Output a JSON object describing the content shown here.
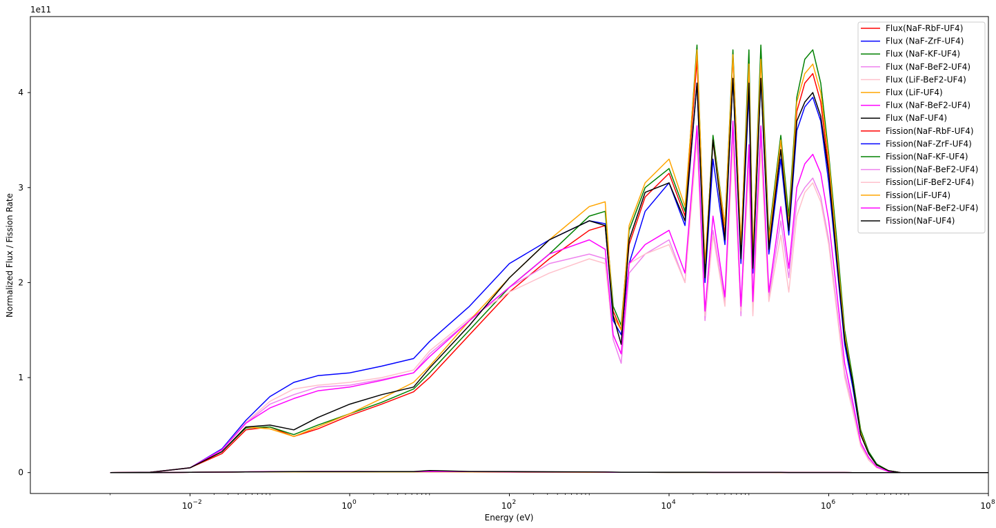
{
  "chart_data": {
    "type": "line",
    "xlabel": "Energy (eV)",
    "ylabel": "Normalized Flux / Fission Rate",
    "y_offset_label": "1e11",
    "x_scale": "log",
    "xlim_exp": [
      -4.0,
      8.0
    ],
    "ylim": [
      -0.22,
      4.8
    ],
    "x_ticks": [
      {
        "exp": -2,
        "label": "10",
        "sup": "−2"
      },
      {
        "exp": 0,
        "label": "10",
        "sup": "0"
      },
      {
        "exp": 2,
        "label": "10",
        "sup": "2"
      },
      {
        "exp": 4,
        "label": "10",
        "sup": "4"
      },
      {
        "exp": 6,
        "label": "10",
        "sup": "6"
      },
      {
        "exp": 8,
        "label": "10",
        "sup": "8"
      }
    ],
    "y_ticks": [
      {
        "value": 0,
        "label": "0"
      },
      {
        "value": 1,
        "label": "1"
      },
      {
        "value": 2,
        "label": "2"
      },
      {
        "value": 3,
        "label": "3"
      },
      {
        "value": 4,
        "label": "4"
      }
    ],
    "grid": false,
    "legend_position": "top-right",
    "x_points_exp": [
      -3,
      -2.5,
      -2,
      -1.6,
      -1.3,
      -1,
      -0.7,
      -0.4,
      0,
      0.4,
      0.8,
      1,
      1.5,
      2,
      2.5,
      3,
      3.2,
      3.3,
      3.4,
      3.5,
      3.7,
      4,
      4.2,
      4.35,
      4.45,
      4.55,
      4.7,
      4.8,
      4.9,
      5,
      5.05,
      5.15,
      5.25,
      5.4,
      5.5,
      5.6,
      5.7,
      5.8,
      5.9,
      6,
      6.1,
      6.2,
      6.3,
      6.4,
      6.5,
      6.6,
      6.75,
      6.9,
      7.2,
      7.6,
      8
    ],
    "series": [
      {
        "name": "Flux(NaF-RbF-UF4)",
        "color": "#ff0000",
        "values": [
          0,
          0.003,
          0.05,
          0.2,
          0.45,
          0.48,
          0.38,
          0.46,
          0.6,
          0.72,
          0.85,
          1.0,
          1.45,
          1.9,
          2.25,
          2.55,
          2.6,
          1.7,
          1.5,
          2.4,
          2.9,
          3.15,
          2.7,
          4.35,
          2.1,
          3.5,
          2.5,
          4.4,
          2.3,
          4.25,
          2.2,
          4.4,
          2.4,
          3.5,
          2.6,
          3.8,
          4.1,
          4.2,
          3.9,
          3.2,
          2.3,
          1.4,
          0.95,
          0.4,
          0.2,
          0.08,
          0.02,
          0,
          0,
          0,
          0
        ]
      },
      {
        "name": "Flux (NaF-ZrF-UF4)",
        "color": "#0000ff",
        "values": [
          0,
          0.003,
          0.05,
          0.25,
          0.55,
          0.8,
          0.95,
          1.02,
          1.05,
          1.12,
          1.2,
          1.38,
          1.75,
          2.2,
          2.45,
          2.65,
          2.62,
          1.6,
          1.45,
          2.2,
          2.75,
          3.05,
          2.6,
          4.1,
          2.0,
          3.3,
          2.4,
          4.15,
          2.2,
          4.0,
          2.1,
          4.15,
          2.3,
          3.3,
          2.5,
          3.6,
          3.85,
          3.95,
          3.7,
          3.05,
          2.2,
          1.35,
          0.9,
          0.4,
          0.2,
          0.08,
          0.02,
          0,
          0,
          0,
          0
        ]
      },
      {
        "name": "Flux (NaF-KF-UF4)",
        "color": "#008000",
        "values": [
          0,
          0.003,
          0.05,
          0.22,
          0.47,
          0.48,
          0.4,
          0.5,
          0.62,
          0.74,
          0.88,
          1.05,
          1.5,
          1.95,
          2.3,
          2.7,
          2.75,
          1.75,
          1.55,
          2.55,
          3.0,
          3.2,
          2.75,
          4.5,
          2.15,
          3.55,
          2.6,
          4.45,
          2.35,
          4.45,
          2.25,
          4.5,
          2.5,
          3.55,
          2.7,
          3.95,
          4.35,
          4.45,
          4.1,
          3.35,
          2.45,
          1.5,
          1.0,
          0.45,
          0.22,
          0.09,
          0.02,
          0,
          0,
          0,
          0
        ]
      },
      {
        "name": "Flux (NaF-BeF2-UF4)",
        "color": "#ee82ee",
        "values": [
          0,
          0.003,
          0.05,
          0.24,
          0.52,
          0.72,
          0.82,
          0.9,
          0.92,
          0.98,
          1.05,
          1.25,
          1.6,
          1.95,
          2.2,
          2.3,
          2.25,
          1.4,
          1.15,
          2.1,
          2.3,
          2.45,
          2.0,
          3.6,
          1.6,
          2.55,
          1.8,
          3.6,
          1.65,
          3.3,
          1.7,
          3.55,
          1.85,
          2.65,
          2.05,
          2.85,
          3.0,
          3.1,
          2.9,
          2.45,
          1.75,
          1.05,
          0.7,
          0.3,
          0.15,
          0.06,
          0.01,
          0,
          0,
          0,
          0
        ]
      },
      {
        "name": "Flux (LiF-BeF2-UF4)",
        "color": "#ffc0cb",
        "values": [
          0,
          0.003,
          0.05,
          0.24,
          0.53,
          0.75,
          0.88,
          0.92,
          0.95,
          1.0,
          1.08,
          1.28,
          1.62,
          1.9,
          2.1,
          2.25,
          2.2,
          1.45,
          1.25,
          2.2,
          2.3,
          2.4,
          2.0,
          3.5,
          1.65,
          2.5,
          1.75,
          3.45,
          1.7,
          3.2,
          1.65,
          3.4,
          1.8,
          2.5,
          1.9,
          2.7,
          2.95,
          3.05,
          2.85,
          2.4,
          1.7,
          1.0,
          0.65,
          0.28,
          0.13,
          0.05,
          0.01,
          0,
          0,
          0,
          0
        ]
      },
      {
        "name": "Flux (LiF-UF4)",
        "color": "#ffa500",
        "values": [
          0,
          0.003,
          0.05,
          0.22,
          0.48,
          0.46,
          0.38,
          0.48,
          0.62,
          0.78,
          0.95,
          1.12,
          1.6,
          2.05,
          2.45,
          2.8,
          2.85,
          1.65,
          1.5,
          2.6,
          3.05,
          3.3,
          2.8,
          4.45,
          2.2,
          3.5,
          2.6,
          4.4,
          2.4,
          4.3,
          2.3,
          4.35,
          2.45,
          3.5,
          2.6,
          3.9,
          4.2,
          4.3,
          4.0,
          3.3,
          2.35,
          1.45,
          0.95,
          0.42,
          0.2,
          0.08,
          0.02,
          0,
          0,
          0,
          0
        ]
      },
      {
        "name": "Flux (NaF-BeF2-UF4)",
        "color": "#ff00ff",
        "values": [
          0,
          0.003,
          0.05,
          0.24,
          0.52,
          0.68,
          0.78,
          0.86,
          0.9,
          0.97,
          1.05,
          1.22,
          1.6,
          1.95,
          2.3,
          2.45,
          2.35,
          1.45,
          1.25,
          2.2,
          2.4,
          2.55,
          2.1,
          3.65,
          1.7,
          2.7,
          1.85,
          3.7,
          1.75,
          3.45,
          1.8,
          3.65,
          1.9,
          2.8,
          2.15,
          3.0,
          3.25,
          3.35,
          3.15,
          2.65,
          1.9,
          1.15,
          0.75,
          0.32,
          0.16,
          0.06,
          0.01,
          0,
          0,
          0,
          0
        ]
      },
      {
        "name": "Flux (NaF-UF4)",
        "color": "#000000",
        "values": [
          0,
          0.003,
          0.05,
          0.22,
          0.48,
          0.5,
          0.45,
          0.58,
          0.72,
          0.82,
          0.9,
          1.1,
          1.55,
          2.05,
          2.45,
          2.65,
          2.6,
          1.65,
          1.35,
          2.45,
          2.95,
          3.05,
          2.65,
          4.1,
          2.05,
          3.5,
          2.45,
          4.15,
          2.25,
          4.1,
          2.15,
          4.15,
          2.35,
          3.4,
          2.55,
          3.7,
          3.9,
          4.0,
          3.75,
          3.15,
          2.25,
          1.4,
          0.95,
          0.4,
          0.2,
          0.08,
          0.02,
          0,
          0,
          0,
          0
        ]
      },
      {
        "name": "Fission(NaF-RbF-UF4)",
        "color": "#ff0000",
        "values": [
          0,
          0,
          0.003,
          0.005,
          0.007,
          0.008,
          0.008,
          0.009,
          0.009,
          0.008,
          0.008,
          0.008,
          0.007,
          0.006,
          0.005,
          0.004,
          0.004,
          0.003,
          0.003,
          0.003,
          0.003,
          0.002,
          0.002,
          0.002,
          0.002,
          0.002,
          0.002,
          0.002,
          0.002,
          0.002,
          0.002,
          0.002,
          0.002,
          0.001,
          0.001,
          0.001,
          0.001,
          0.001,
          0.001,
          0.001,
          0.001,
          0.001,
          0,
          0,
          0,
          0,
          0,
          0,
          0,
          0,
          0
        ]
      },
      {
        "name": "Fission(NaF-ZrF-UF4)",
        "color": "#0000ff",
        "values": [
          0,
          0,
          0.003,
          0.005,
          0.007,
          0.008,
          0.009,
          0.01,
          0.01,
          0.009,
          0.009,
          0.009,
          0.008,
          0.007,
          0.006,
          0.005,
          0.004,
          0.003,
          0.003,
          0.003,
          0.003,
          0.002,
          0.002,
          0.002,
          0.002,
          0.002,
          0.002,
          0.002,
          0.002,
          0.002,
          0.002,
          0.002,
          0.002,
          0.001,
          0.001,
          0.001,
          0.001,
          0.001,
          0.001,
          0.001,
          0.001,
          0.001,
          0,
          0,
          0,
          0,
          0,
          0,
          0,
          0,
          0
        ]
      },
      {
        "name": "Fission(NaF-KF-UF4)",
        "color": "#008000",
        "values": [
          0,
          0,
          0.003,
          0.005,
          0.007,
          0.008,
          0.008,
          0.009,
          0.009,
          0.008,
          0.008,
          0.008,
          0.007,
          0.006,
          0.005,
          0.004,
          0.004,
          0.003,
          0.003,
          0.003,
          0.003,
          0.002,
          0.002,
          0.002,
          0.002,
          0.002,
          0.002,
          0.002,
          0.002,
          0.002,
          0.002,
          0.002,
          0.002,
          0.001,
          0.001,
          0.001,
          0.001,
          0.001,
          0.001,
          0.001,
          0.001,
          0.001,
          0,
          0,
          0,
          0,
          0,
          0,
          0,
          0,
          0
        ]
      },
      {
        "name": "Fission(NaF-BeF2-UF4)",
        "color": "#ee82ee",
        "values": [
          0,
          0,
          0.003,
          0.005,
          0.008,
          0.01,
          0.011,
          0.012,
          0.012,
          0.011,
          0.011,
          0.011,
          0.01,
          0.008,
          0.007,
          0.006,
          0.005,
          0.004,
          0.004,
          0.004,
          0.003,
          0.003,
          0.003,
          0.003,
          0.003,
          0.002,
          0.002,
          0.002,
          0.002,
          0.002,
          0.002,
          0.002,
          0.002,
          0.002,
          0.001,
          0.001,
          0.001,
          0.001,
          0.001,
          0.001,
          0.001,
          0.001,
          0,
          0,
          0,
          0,
          0,
          0,
          0,
          0,
          0
        ]
      },
      {
        "name": "Fission(LiF-BeF2-UF4)",
        "color": "#ffc0cb",
        "values": [
          0,
          0,
          0.003,
          0.005,
          0.008,
          0.01,
          0.011,
          0.012,
          0.012,
          0.011,
          0.011,
          0.011,
          0.01,
          0.008,
          0.007,
          0.006,
          0.005,
          0.004,
          0.004,
          0.004,
          0.003,
          0.003,
          0.003,
          0.003,
          0.003,
          0.002,
          0.002,
          0.002,
          0.002,
          0.002,
          0.002,
          0.002,
          0.002,
          0.002,
          0.001,
          0.001,
          0.001,
          0.001,
          0.001,
          0.001,
          0.001,
          0.001,
          0,
          0,
          0,
          0,
          0,
          0,
          0,
          0,
          0
        ]
      },
      {
        "name": "Fission(LiF-UF4)",
        "color": "#ffa500",
        "values": [
          0,
          0,
          0.003,
          0.005,
          0.007,
          0.008,
          0.008,
          0.009,
          0.009,
          0.008,
          0.008,
          0.008,
          0.007,
          0.006,
          0.005,
          0.004,
          0.004,
          0.003,
          0.003,
          0.003,
          0.003,
          0.002,
          0.002,
          0.002,
          0.002,
          0.002,
          0.002,
          0.002,
          0.002,
          0.002,
          0.002,
          0.002,
          0.002,
          0.001,
          0.001,
          0.001,
          0.001,
          0.001,
          0.001,
          0.001,
          0.001,
          0.001,
          0,
          0,
          0,
          0,
          0,
          0,
          0,
          0,
          0
        ]
      },
      {
        "name": "Fission(NaF-BeF2-UF4)",
        "color": "#ff00ff",
        "values": [
          0,
          0,
          0.003,
          0.005,
          0.008,
          0.01,
          0.011,
          0.012,
          0.012,
          0.011,
          0.011,
          0.011,
          0.01,
          0.008,
          0.007,
          0.006,
          0.005,
          0.004,
          0.004,
          0.004,
          0.003,
          0.003,
          0.003,
          0.003,
          0.003,
          0.002,
          0.002,
          0.002,
          0.002,
          0.002,
          0.002,
          0.002,
          0.002,
          0.002,
          0.001,
          0.001,
          0.001,
          0.001,
          0.001,
          0.001,
          0.001,
          0.001,
          0,
          0,
          0,
          0,
          0,
          0,
          0,
          0,
          0
        ]
      },
      {
        "name": "Fission(NaF-UF4)",
        "color": "#000000",
        "values": [
          0,
          0,
          0.003,
          0.005,
          0.007,
          0.009,
          0.01,
          0.011,
          0.011,
          0.01,
          0.01,
          0.022,
          0.012,
          0.01,
          0.009,
          0.007,
          0.006,
          0.005,
          0.004,
          0.004,
          0.003,
          0.003,
          0.003,
          0.003,
          0.003,
          0.002,
          0.002,
          0.002,
          0.002,
          0.002,
          0.002,
          0.002,
          0.002,
          0.002,
          0.001,
          0.001,
          0.001,
          0.001,
          0.001,
          0.001,
          0.001,
          0.001,
          0,
          0,
          0,
          0,
          0,
          0,
          0,
          0,
          0
        ]
      }
    ]
  }
}
